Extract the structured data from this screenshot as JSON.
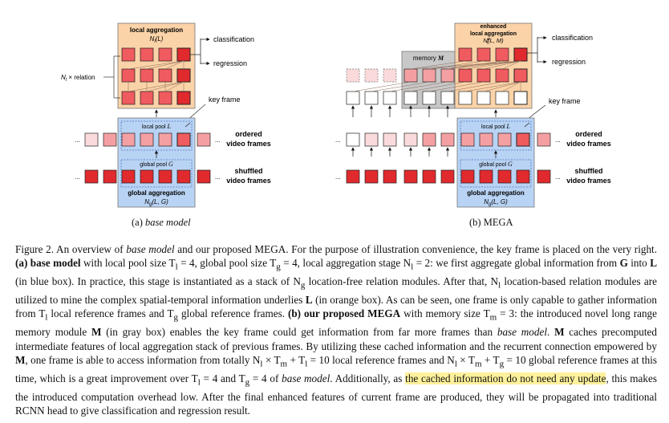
{
  "figure": {
    "left": {
      "local_aggregation": "local aggregation",
      "local_aggregation_sym": "N_l(L)",
      "classification": "classification",
      "regression": "regression",
      "relation_label": "N_l × relation",
      "key_frame": "key frame",
      "local_pool": "local pool L",
      "global_pool": "global pool G",
      "ordered_1": "ordered",
      "ordered_2": "video frames",
      "shuffled_1": "shuffled",
      "shuffled_2": "video frames",
      "global_aggregation": "global aggregation",
      "global_aggregation_sym": "N_g(L, G)",
      "ellipsis": "..."
    },
    "right": {
      "enhanced_1": "enhanced",
      "enhanced_2": "local aggregation",
      "enhanced_sym": "N_l^e(L, M)",
      "classification": "classification",
      "regression": "regression",
      "memory": "memory M",
      "key_frame": "key frame",
      "local_pool": "local pool L",
      "global_pool": "global pool G",
      "ordered_1": "ordered",
      "ordered_2": "video frames",
      "shuffled_1": "shuffled",
      "shuffled_2": "video frames",
      "global_aggregation": "global aggregation",
      "global_aggregation_sym": "N_g(L, G)",
      "ellipsis": "..."
    },
    "sub_a_label": "(a)",
    "sub_a_name": "base model",
    "sub_b_label": "(b) MEGA"
  },
  "caption": {
    "s1": "Figure 2. An overview of ",
    "s2": "base model",
    "s3": " and our proposed MEGA. For the purpose of illustration convenience, the key frame is placed on the very right. ",
    "s4": "(a) base model",
    "s5": " with local pool size T",
    "s5a": "l",
    "s6": " = 4, global pool size T",
    "s6a": "g",
    "s7": " = 4, local aggregation stage N",
    "s7a": "l",
    "s8": " = 2: we first aggregate global information from ",
    "s9": "G",
    "s10": " into ",
    "s11": "L",
    "s12": " (in blue box). In practice, this stage is instantiated as a stack of N",
    "s12a": "g",
    "s13": " location-free relation modules. After that, N",
    "s13a": "l",
    "s14": " location-based relation modules are utilized to mine the complex spatial-temporal information underlies ",
    "s15": "L",
    "s16": " (in orange box). As can be seen, one frame is only capable to gather information from T",
    "s16a": "l",
    "s17": " local reference frames and T",
    "s17a": "g",
    "s18": " global reference frames. ",
    "s19": "(b) our proposed MEGA",
    "s20": " with memory size T",
    "s20a": "m",
    "s21": " = 3: the introduced novel long range memory module ",
    "s22": "M",
    "s23": " (in gray box) enables the key frame could get information from far more frames than ",
    "s24": "base model",
    "s25": ". ",
    "s26": "M",
    "s27": " caches precomputed intermediate features of local aggregation stack of previous frames. By utilizing these cached information and the recurrent connection empowered by ",
    "s28": "M",
    "s29": ", one frame is able to access information from totally N",
    "s29a": "l",
    "s30": " × T",
    "s30a": "m",
    "s31": " + T",
    "s31a": "l",
    "s32": " = 10 local reference frames and N",
    "s32a": "l",
    "s33": " × T",
    "s33a": "m",
    "s34": " + T",
    "s34a": "g",
    "s35": " = 10 global reference frames at this time, which is a great improvement over T",
    "s35a": "l",
    "s36": " = 4 and T",
    "s36a": "g",
    "s37": " = 4 of ",
    "s38": "base model",
    "s39": ". Additionally, as ",
    "s40": "the cached information do not need any update",
    "s41": ", this makes the introduced computation overhead low. After the final enhanced features of current frame are produced, they will be propagated into traditional RCNN head to give classification and regression result."
  },
  "colors": {
    "orange_box": "#fbd3a8",
    "blue_box": "#b9d3f4",
    "gray_box": "#c8c8c8",
    "red_dark": "#e02a2e",
    "red_mid": "#ef5b5f",
    "red_light": "#f4a0a3",
    "red_pale": "#fadadb",
    "highlight": "#fdf19c"
  }
}
